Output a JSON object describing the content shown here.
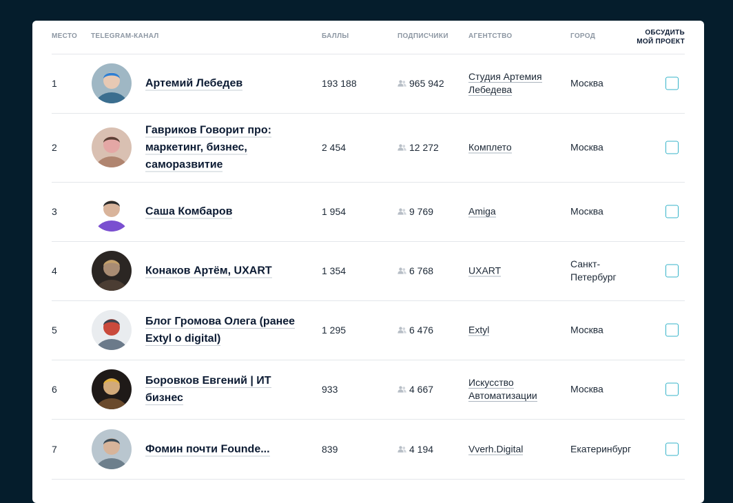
{
  "table": {
    "headers": {
      "rank": "МЕСТО",
      "channel": "TELEGRAM-КАНАЛ",
      "score": "БАЛЛЫ",
      "subscribers": "ПОДПИСЧИКИ",
      "agency": "АГЕНТСТВО",
      "city": "ГОРОД",
      "discuss_line1": "ОБСУДИТЬ",
      "discuss_line2": "МОЙ ПРОЕКТ"
    },
    "rows": [
      {
        "rank": "1",
        "channel": "Артемий Лебедев",
        "score": "193 188",
        "subscribers": "965 942",
        "agency": "Студия Артемия Лебедева",
        "city": "Москва"
      },
      {
        "rank": "2",
        "channel": "Гавриков Говорит про: маркетинг, бизнес, саморазвитие",
        "score": "2 454",
        "subscribers": "12 272",
        "agency": "Комплето",
        "city": "Москва"
      },
      {
        "rank": "3",
        "channel": "Саша Комбаров",
        "score": "1 954",
        "subscribers": "9 769",
        "agency": "Amiga",
        "city": "Москва"
      },
      {
        "rank": "4",
        "channel": "Конаков Артём, UXART",
        "score": "1 354",
        "subscribers": "6 768",
        "agency": "UXART",
        "city": "Санкт-Петербург"
      },
      {
        "rank": "5",
        "channel": "Блог Громова Олега (ранее Extyl о digital)",
        "score": "1 295",
        "subscribers": "6 476",
        "agency": "Extyl",
        "city": "Москва"
      },
      {
        "rank": "6",
        "channel": "Боровков Евгений | ИТ бизнес",
        "score": "933",
        "subscribers": "4 667",
        "agency": "Искусство Автоматизации",
        "city": "Москва"
      },
      {
        "rank": "7",
        "channel": "Фомин почти Founde...",
        "score": "839",
        "subscribers": "4 194",
        "agency": "Vverh.Digital",
        "city": "Екатеринбург"
      }
    ]
  },
  "icons": {
    "subscribers": "people-icon",
    "avatar": "avatar-photo"
  },
  "colors": {
    "background": "#051d2c",
    "checkbox_border": "#35b3c9",
    "text": "#0c1b33"
  }
}
